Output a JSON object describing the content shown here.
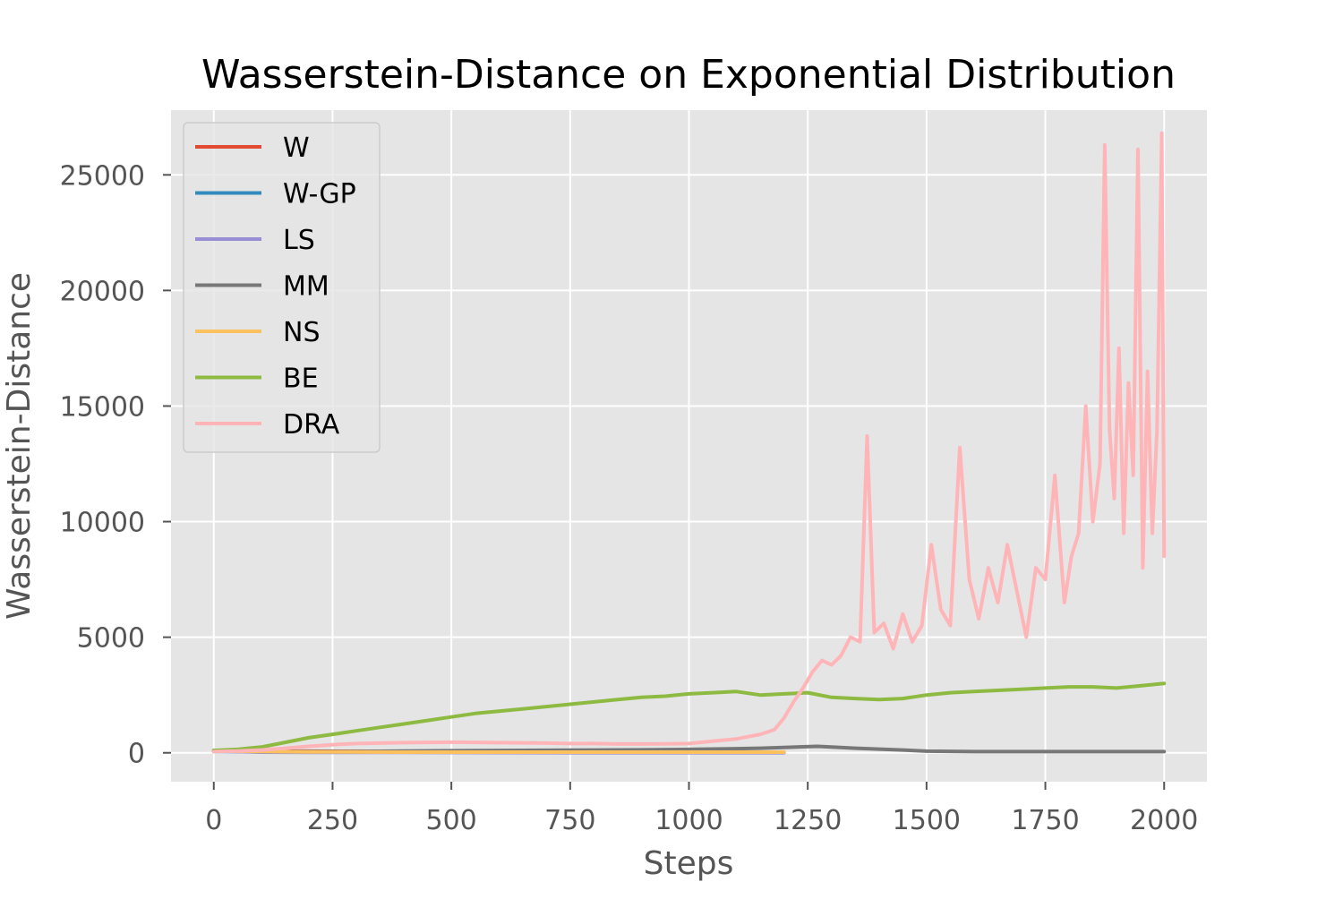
{
  "chart_data": {
    "type": "line",
    "title": "Wasserstein-Distance on Exponential Distribution",
    "xlabel": "Steps",
    "ylabel": "Wasserstein-Distance",
    "xlim": [
      -90,
      2090
    ],
    "ylim": [
      -1250,
      27800
    ],
    "xticks": [
      0,
      250,
      500,
      750,
      1000,
      1250,
      1500,
      1750,
      2000
    ],
    "yticks": [
      0,
      5000,
      10000,
      15000,
      20000,
      25000
    ],
    "grid": true,
    "legend_position": "top-left",
    "series": [
      {
        "name": "W",
        "color": "#E24A33",
        "x": [
          0,
          1200
        ],
        "y": [
          80,
          20
        ]
      },
      {
        "name": "W-GP",
        "color": "#348ABD",
        "x": [
          0,
          1200
        ],
        "y": [
          60,
          15
        ]
      },
      {
        "name": "LS",
        "color": "#988ED5",
        "x": [
          0,
          100,
          200,
          400,
          600,
          800,
          1000,
          1200
        ],
        "y": [
          80,
          30,
          20,
          15,
          10,
          5,
          5,
          5
        ]
      },
      {
        "name": "MM",
        "color": "#777777",
        "x": [
          0,
          50,
          100,
          200,
          300,
          400,
          500,
          600,
          700,
          800,
          900,
          1000,
          1100,
          1150,
          1200,
          1240,
          1270,
          1300,
          1350,
          1400,
          1450,
          1500,
          1600,
          1700,
          1800,
          1900,
          2000
        ],
        "y": [
          100,
          80,
          60,
          50,
          60,
          80,
          90,
          100,
          110,
          120,
          130,
          150,
          180,
          200,
          230,
          260,
          280,
          250,
          200,
          160,
          120,
          70,
          50,
          50,
          50,
          50,
          50
        ]
      },
      {
        "name": "NS",
        "color": "#FBC15E",
        "x": [
          0,
          200,
          400,
          600,
          800,
          1000,
          1200
        ],
        "y": [
          80,
          40,
          30,
          30,
          30,
          30,
          30
        ]
      },
      {
        "name": "BE",
        "color": "#8EBA42",
        "x": [
          0,
          50,
          100,
          150,
          200,
          250,
          300,
          350,
          400,
          450,
          500,
          550,
          600,
          650,
          700,
          750,
          800,
          850,
          900,
          950,
          1000,
          1050,
          1100,
          1150,
          1200,
          1250,
          1300,
          1350,
          1400,
          1450,
          1500,
          1550,
          1600,
          1650,
          1700,
          1750,
          1800,
          1850,
          1900,
          1950,
          2000
        ],
        "y": [
          100,
          150,
          250,
          450,
          650,
          800,
          950,
          1100,
          1250,
          1400,
          1550,
          1700,
          1800,
          1900,
          2000,
          2100,
          2200,
          2300,
          2400,
          2450,
          2550,
          2600,
          2650,
          2500,
          2550,
          2600,
          2400,
          2350,
          2300,
          2350,
          2500,
          2600,
          2650,
          2700,
          2750,
          2800,
          2850,
          2850,
          2800,
          2900,
          3000
        ]
      },
      {
        "name": "DRA",
        "color": "#FFB5B8",
        "x": [
          0,
          50,
          100,
          150,
          200,
          250,
          300,
          350,
          400,
          450,
          500,
          550,
          600,
          650,
          700,
          750,
          800,
          850,
          900,
          950,
          1000,
          1050,
          1100,
          1150,
          1180,
          1200,
          1220,
          1240,
          1260,
          1280,
          1300,
          1320,
          1340,
          1360,
          1375,
          1390,
          1410,
          1430,
          1450,
          1470,
          1490,
          1510,
          1530,
          1550,
          1570,
          1590,
          1610,
          1630,
          1650,
          1670,
          1690,
          1710,
          1730,
          1750,
          1770,
          1790,
          1805,
          1820,
          1835,
          1850,
          1865,
          1875,
          1885,
          1895,
          1905,
          1915,
          1925,
          1935,
          1945,
          1955,
          1965,
          1975,
          1985,
          1995,
          2000
        ],
        "y": [
          50,
          80,
          120,
          200,
          280,
          350,
          400,
          420,
          440,
          450,
          460,
          450,
          440,
          430,
          420,
          400,
          400,
          380,
          380,
          390,
          400,
          500,
          600,
          800,
          1000,
          1500,
          2200,
          2800,
          3500,
          4000,
          3800,
          4200,
          5000,
          4800,
          13700,
          5200,
          5600,
          4500,
          6000,
          4800,
          5500,
          9000,
          6200,
          5500,
          13200,
          7500,
          5800,
          8000,
          6500,
          9000,
          7000,
          5000,
          8000,
          7500,
          12000,
          6500,
          8500,
          9500,
          15000,
          10000,
          12500,
          26300,
          14000,
          11000,
          17500,
          9500,
          16000,
          12000,
          26100,
          8000,
          16500,
          9500,
          14000,
          26800,
          8500
        ]
      }
    ]
  }
}
